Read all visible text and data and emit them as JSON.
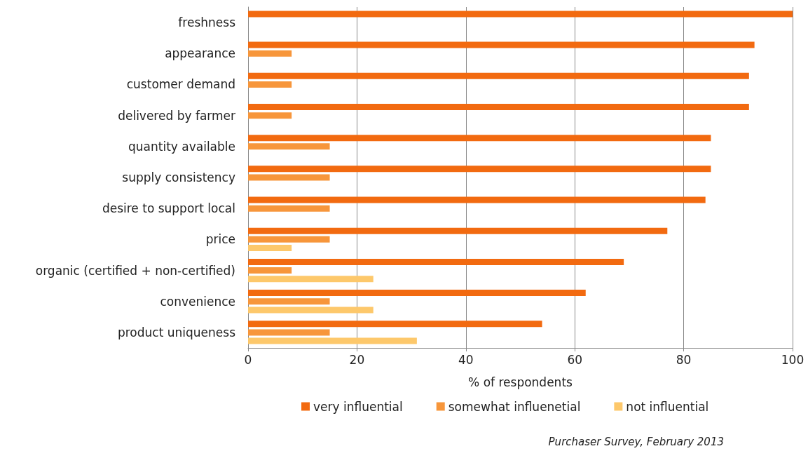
{
  "chart_data": {
    "type": "bar",
    "orientation": "horizontal",
    "xlabel": "% of respondents",
    "categories": [
      "freshness",
      "appearance",
      "customer demand",
      "delivered by farmer",
      "quantity available",
      "supply consistency",
      "desire to support local",
      "price",
      "organic (certified + non-certified)",
      "convenience",
      "product uniqueness"
    ],
    "series": [
      {
        "name": "very influential",
        "color": "#f26a10",
        "values": [
          100,
          93,
          92,
          92,
          85,
          85,
          84,
          77,
          69,
          62,
          54
        ]
      },
      {
        "name": "somewhat influenetial",
        "color": "#f7963b",
        "values": [
          null,
          8,
          8,
          8,
          15,
          15,
          15,
          15,
          8,
          15,
          15
        ]
      },
      {
        "name": "not influential",
        "color": "#fdc86b",
        "values": [
          null,
          null,
          null,
          null,
          null,
          null,
          null,
          8,
          23,
          23,
          31
        ]
      }
    ],
    "xlim": [
      0,
      100
    ],
    "xticks": [
      0,
      20,
      40,
      60,
      80,
      100
    ],
    "grid": "x",
    "legend": "bottom",
    "annotations": [
      "Purchaser Survey, February 2013"
    ]
  }
}
